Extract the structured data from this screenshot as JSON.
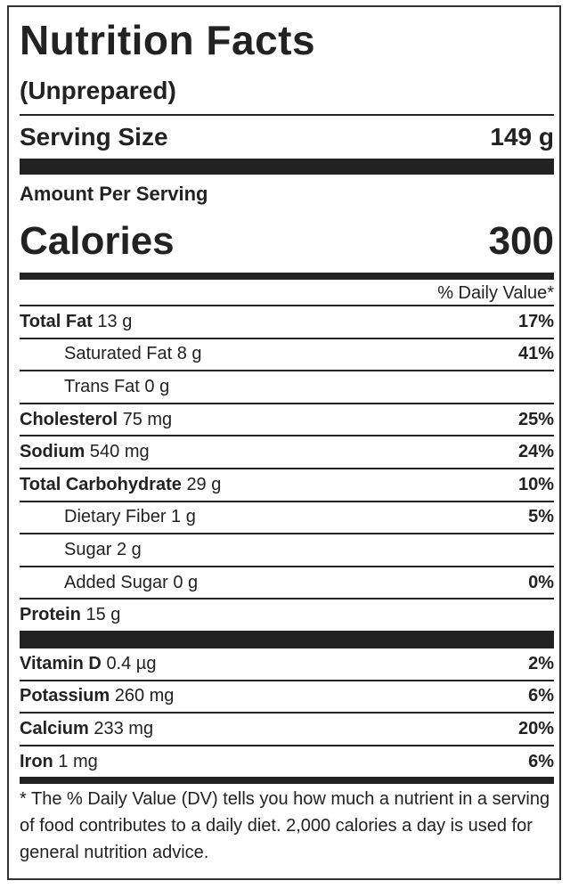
{
  "header": {
    "title": "Nutrition Facts",
    "subtitle": "(Unprepared)",
    "serving_label": "Serving Size",
    "serving_value": "149 g",
    "amount_label": "Amount Per Serving",
    "calories_label": "Calories",
    "calories_value": "300",
    "dv_header": "% Daily Value*"
  },
  "nutrients": [
    {
      "name": "Total Fat",
      "amount": "13 g",
      "dv": "17%",
      "sub": [
        {
          "name": "Saturated Fat",
          "amount": "8 g",
          "dv": "41%"
        },
        {
          "name": "Trans Fat",
          "amount": "0 g"
        }
      ]
    },
    {
      "name": "Cholesterol",
      "amount": "75 mg",
      "dv": "25%"
    },
    {
      "name": "Sodium",
      "amount": "540 mg",
      "dv": "24%"
    },
    {
      "name": "Total Carbohydrate",
      "amount": "29 g",
      "dv": "10%",
      "sub": [
        {
          "name": "Dietary Fiber",
          "amount": "1 g",
          "dv": "5%"
        },
        {
          "name": "Sugar",
          "amount": "2 g"
        },
        {
          "name": "Added Sugar",
          "amount": "0 g",
          "dv": "0%"
        }
      ]
    },
    {
      "name": "Protein",
      "amount": "15 g"
    }
  ],
  "vitamins": [
    {
      "name": "Vitamin D",
      "amount": "0.4 µg",
      "dv": "2%"
    },
    {
      "name": "Potassium",
      "amount": "260 mg",
      "dv": "6%"
    },
    {
      "name": "Calcium",
      "amount": "233 mg",
      "dv": "20%"
    },
    {
      "name": "Iron",
      "amount": "1 mg",
      "dv": "6%"
    }
  ],
  "footnote": "* The % Daily Value (DV) tells you how much a nutrient in a serving of food contributes to a daily diet. 2,000 calories a day is used for general nutrition advice."
}
